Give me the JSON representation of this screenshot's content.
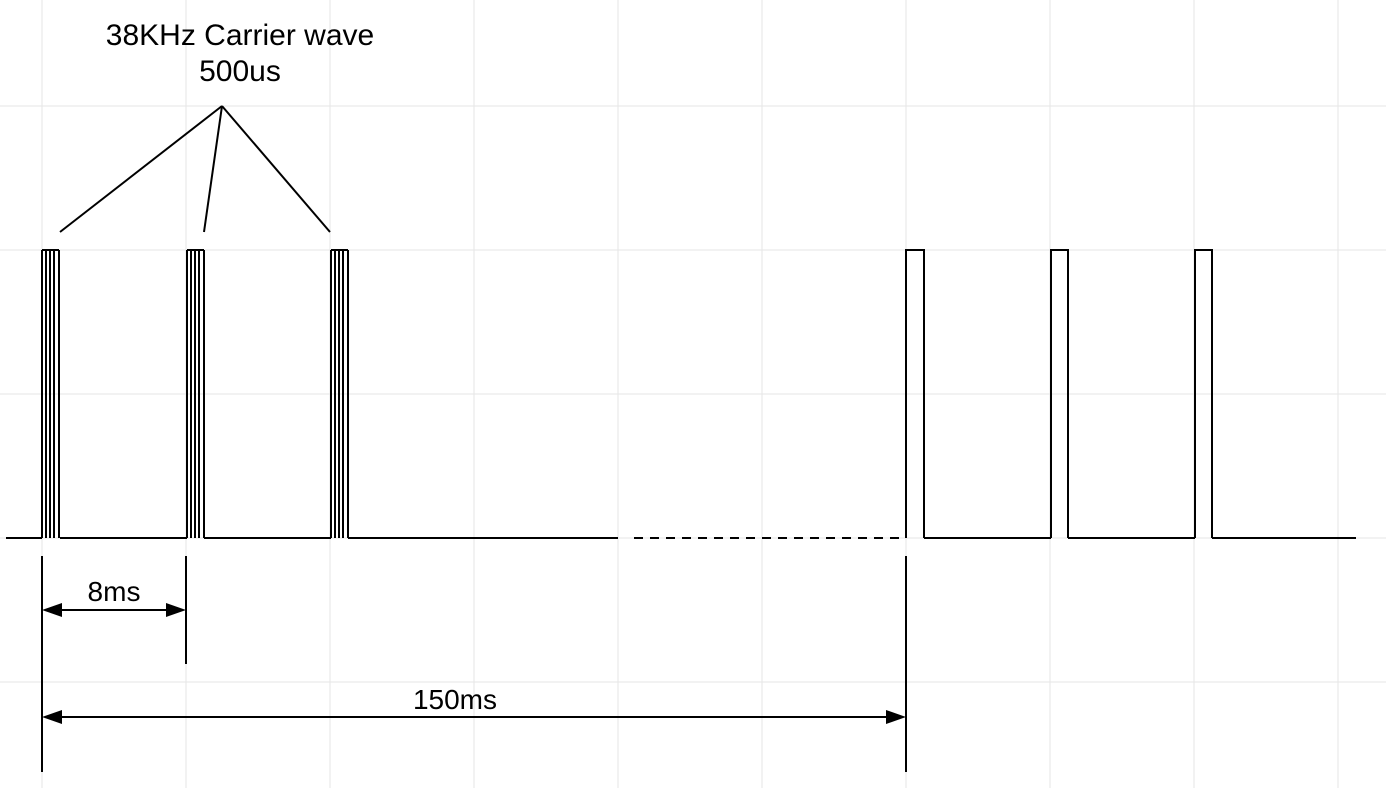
{
  "annotation": {
    "title": "38KHz Carrier wave",
    "duration": "500us"
  },
  "dimensions": {
    "short_interval": "8ms",
    "long_interval": "150ms"
  },
  "colors": {
    "grid": "#e6e6e6",
    "signal": "#000000",
    "background": "#ffffff"
  }
}
